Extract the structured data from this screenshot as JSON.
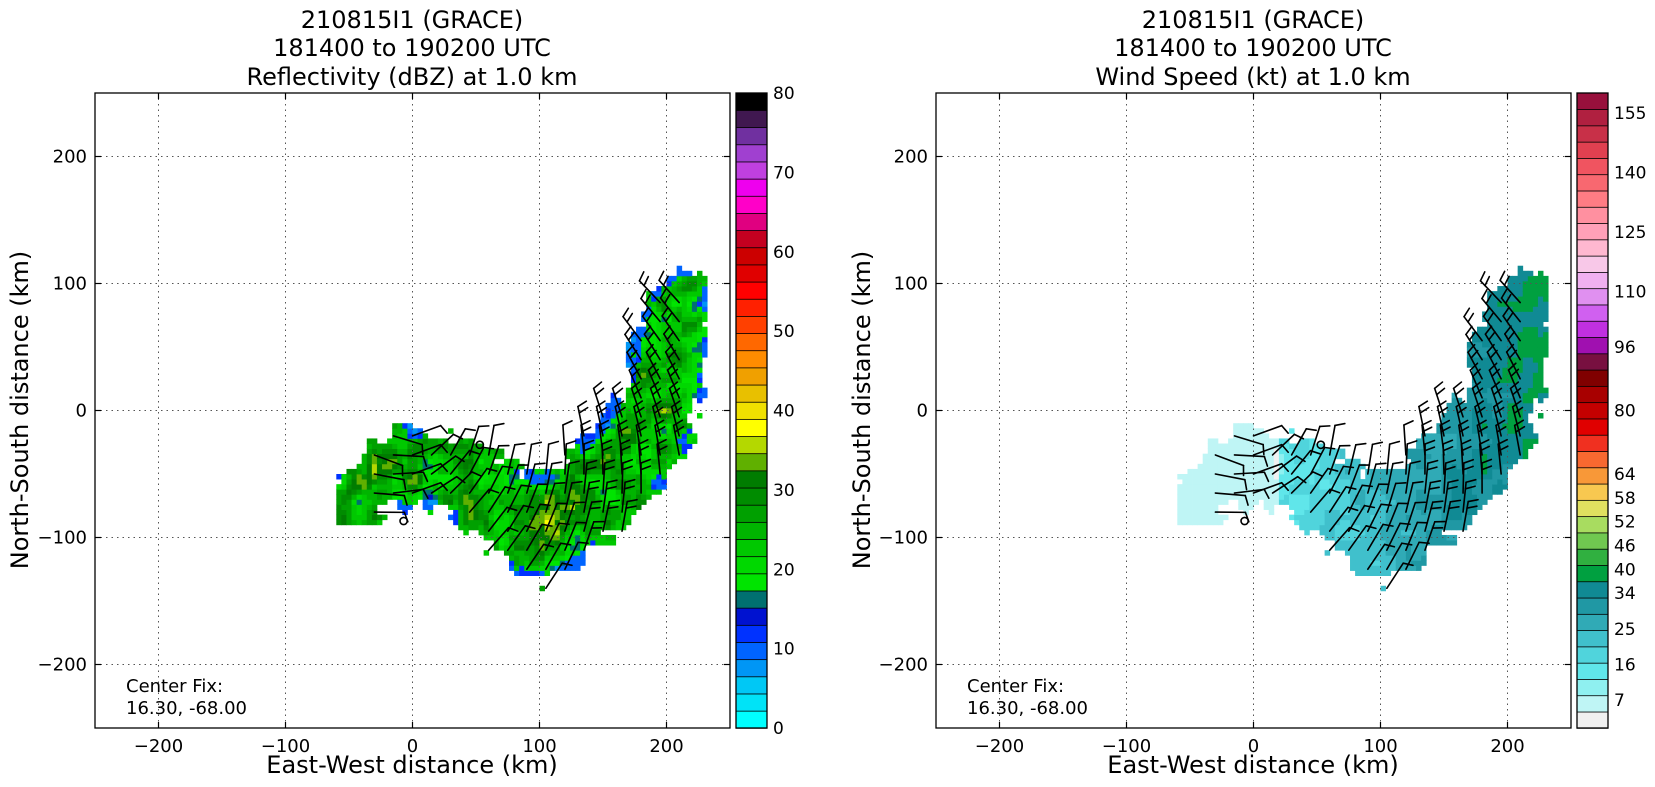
{
  "chart_data": [
    {
      "type": "heatmap",
      "title_lines": [
        "210815I1 (GRACE)",
        "181400 to 190200 UTC",
        "Reflectivity (dBZ) at 1.0 km"
      ],
      "xlabel": "East-West distance (km)",
      "ylabel": "North-South distance (km)",
      "xlim": [
        -250,
        250
      ],
      "ylim": [
        -250,
        250
      ],
      "xticks": [
        -200,
        -100,
        0,
        100,
        200
      ],
      "yticks": [
        -200,
        -100,
        0,
        100,
        200
      ],
      "grid": true,
      "annotation_lines": [
        "Center Fix:",
        "16.30, -68.00"
      ],
      "field": "reflectivity",
      "center_markers": [
        [
          53,
          -27
        ],
        [
          -7,
          -87
        ]
      ],
      "colorbar": {
        "min": 0,
        "max": 80,
        "tick_values": [
          0,
          10,
          20,
          30,
          40,
          50,
          60,
          70,
          80
        ],
        "tick_labels": [
          "0",
          "10",
          "20",
          "30",
          "40",
          "50",
          "60",
          "70",
          "80"
        ],
        "colors": [
          "#00ffff",
          "#00e3f7",
          "#00c8f5",
          "#0096f5",
          "#0064ff",
          "#0032ff",
          "#0012d0",
          "#007070",
          "#00e400",
          "#00d800",
          "#00c800",
          "#00b400",
          "#00a000",
          "#008c00",
          "#007c00",
          "#60b000",
          "#b4d800",
          "#ffff00",
          "#f0e000",
          "#e8c000",
          "#f0a000",
          "#ff8c00",
          "#ff6800",
          "#ff4000",
          "#ff2000",
          "#ff0000",
          "#e00000",
          "#cc0000",
          "#c40020",
          "#e00080",
          "#ff00c8",
          "#ee00ee",
          "#c040e0",
          "#a040d0",
          "#7030a0",
          "#401850",
          "#000000"
        ]
      }
    },
    {
      "type": "heatmap",
      "title_lines": [
        "210815I1 (GRACE)",
        "181400 to 190200 UTC",
        "Wind Speed (kt) at 1.0 km"
      ],
      "xlabel": "East-West distance (km)",
      "ylabel": "North-South distance (km)",
      "xlim": [
        -250,
        250
      ],
      "ylim": [
        -250,
        250
      ],
      "xticks": [
        -200,
        -100,
        0,
        100,
        200
      ],
      "yticks": [
        -200,
        -100,
        0,
        100,
        200
      ],
      "grid": true,
      "annotation_lines": [
        "Center Fix:",
        "16.30, -68.00"
      ],
      "field": "wind",
      "center_markers": [
        [
          53,
          -27
        ],
        [
          -7,
          -87
        ]
      ],
      "colorbar": {
        "min": 0,
        "max": 160,
        "tick_values": [
          7,
          16,
          25,
          34,
          40,
          46,
          52,
          58,
          64,
          80,
          96,
          110,
          125,
          140,
          155
        ],
        "tick_labels": [
          "7",
          "16",
          "25",
          "34",
          "40",
          "46",
          "52",
          "58",
          "64",
          "80",
          "96",
          "110",
          "125",
          "140",
          "155"
        ],
        "colors": [
          "#f0f0f0",
          "#bff5f5",
          "#8ff0f0",
          "#60e6ea",
          "#50d4dc",
          "#40c0cc",
          "#30aab6",
          "#2098a4",
          "#108a94",
          "#00a040",
          "#30b040",
          "#70c850",
          "#a8dc60",
          "#e0e060",
          "#f8c850",
          "#f89838",
          "#f86830",
          "#f03020",
          "#e00000",
          "#c40000",
          "#a80000",
          "#800000",
          "#781040",
          "#a010b0",
          "#c030e0",
          "#d060f0",
          "#e090f0",
          "#f0b0f0",
          "#f8c8e8",
          "#ffb8d0",
          "#ffa0b8",
          "#ff90a0",
          "#ff7c84",
          "#f86870",
          "#f05460",
          "#e04050",
          "#c83048",
          "#b02040",
          "#98103c"
        ]
      }
    }
  ]
}
